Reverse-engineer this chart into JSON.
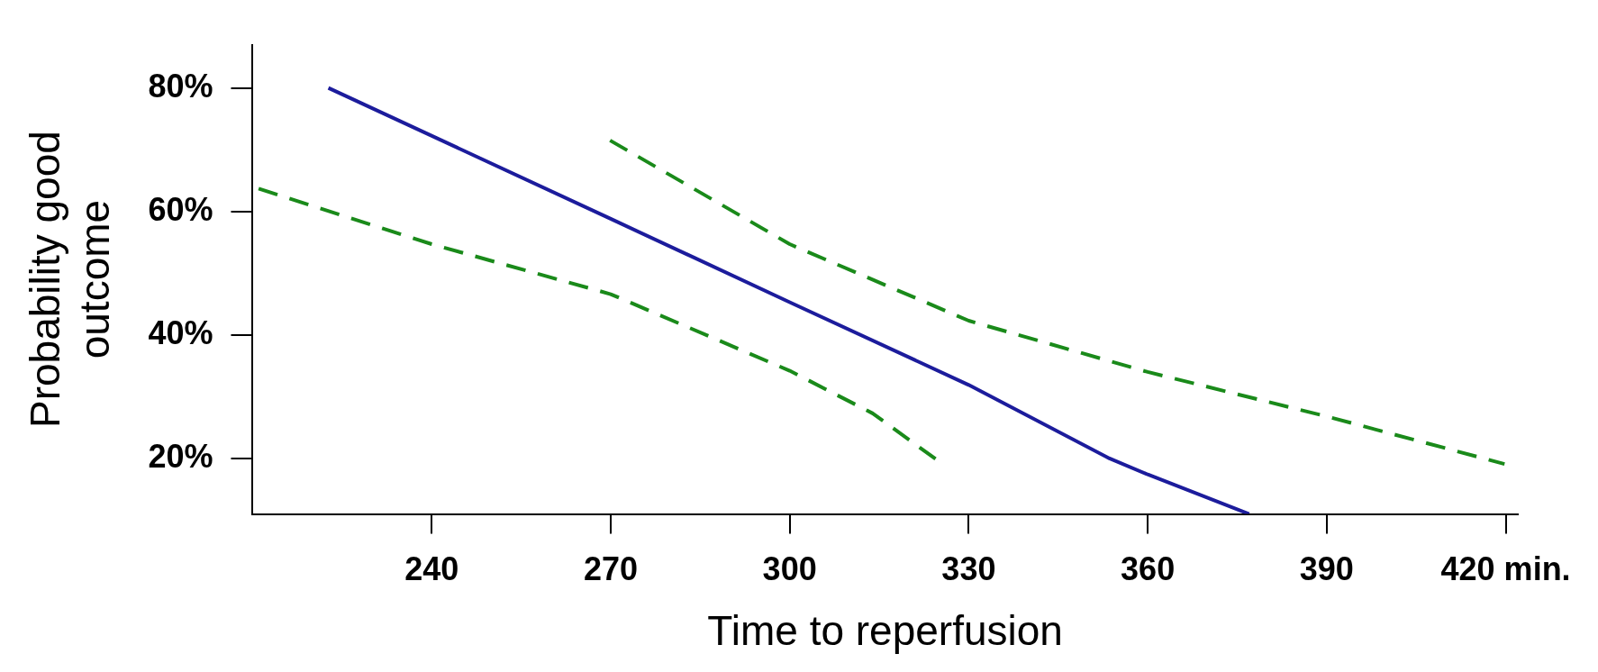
{
  "chart_data": {
    "type": "line",
    "xlabel": "Time to reperfusion",
    "ylabel": "Probability good outcome",
    "xlim": [
      210,
      422
    ],
    "xticks": [
      240,
      270,
      300,
      330,
      360,
      390,
      {
        "value": 420,
        "label": "420 min."
      }
    ],
    "ylim": [
      11,
      87
    ],
    "yticks": [
      {
        "value": 20,
        "label": "20%"
      },
      {
        "value": 40,
        "label": "40%"
      },
      {
        "value": 60,
        "label": "60%"
      },
      {
        "value": 80,
        "label": "80%"
      }
    ],
    "grid": false,
    "legend": false,
    "marker": "none",
    "series": [
      {
        "color": "#1c1c9c",
        "line_style": "solid",
        "x": [
          222.7,
          270,
          300,
          330,
          353.6,
          360,
          377
        ],
        "values": [
          80,
          58.8,
          45.3,
          31.9,
          20,
          17.4,
          11
        ]
      },
      {
        "color": "#1a8a1a",
        "line_style": "dashed",
        "x": [
          211,
          240,
          270,
          300,
          313.9,
          324.9
        ],
        "values": [
          63.7,
          54.7,
          46.6,
          34.2,
          27.3,
          19.6
        ]
      },
      {
        "color": "#1a8a1a",
        "line_style": "dashed",
        "x": [
          269.9,
          300,
          330,
          360,
          390,
          419.8
        ],
        "values": [
          71.5,
          54.7,
          42.3,
          34,
          26.8,
          19.1
        ]
      }
    ]
  }
}
